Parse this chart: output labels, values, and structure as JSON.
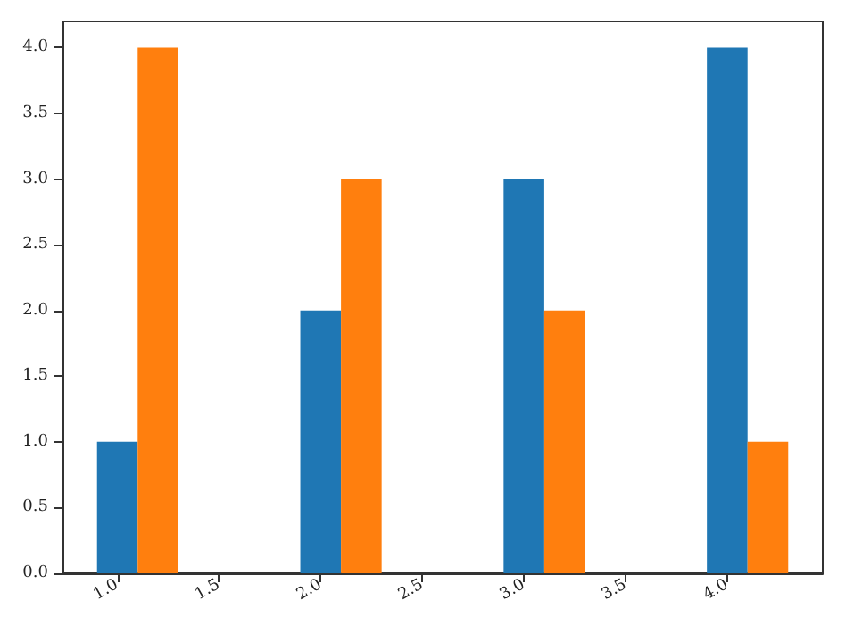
{
  "chart_data": {
    "type": "bar",
    "series": [
      {
        "color": "#1f77b4",
        "x": [
          1.0,
          2.0,
          3.0,
          4.0
        ],
        "values": [
          1,
          2,
          3,
          4
        ]
      },
      {
        "color": "#ff7f0e",
        "x": [
          1.2,
          2.2,
          3.2,
          4.2
        ],
        "values": [
          4,
          3,
          2,
          1
        ]
      }
    ],
    "xlim": [
      0.73,
      4.47
    ],
    "xticks": [
      {
        "value": 1,
        "label": "1.0"
      },
      1.5,
      {
        "value": 2,
        "label": "2.0"
      },
      2.5,
      {
        "value": 3,
        "label": "3.0"
      },
      3.5,
      {
        "value": 4,
        "label": "4.0"
      }
    ],
    "ylim": [
      0,
      4.2
    ],
    "yticks": [
      {
        "value": 0,
        "label": "0.0"
      },
      0.5,
      {
        "value": 1,
        "label": "1.0"
      },
      1.5,
      {
        "value": 2,
        "label": "2.0"
      },
      2.5,
      {
        "value": 3,
        "label": "3.0"
      },
      3.5,
      {
        "value": 4,
        "label": "4.0"
      }
    ]
  }
}
